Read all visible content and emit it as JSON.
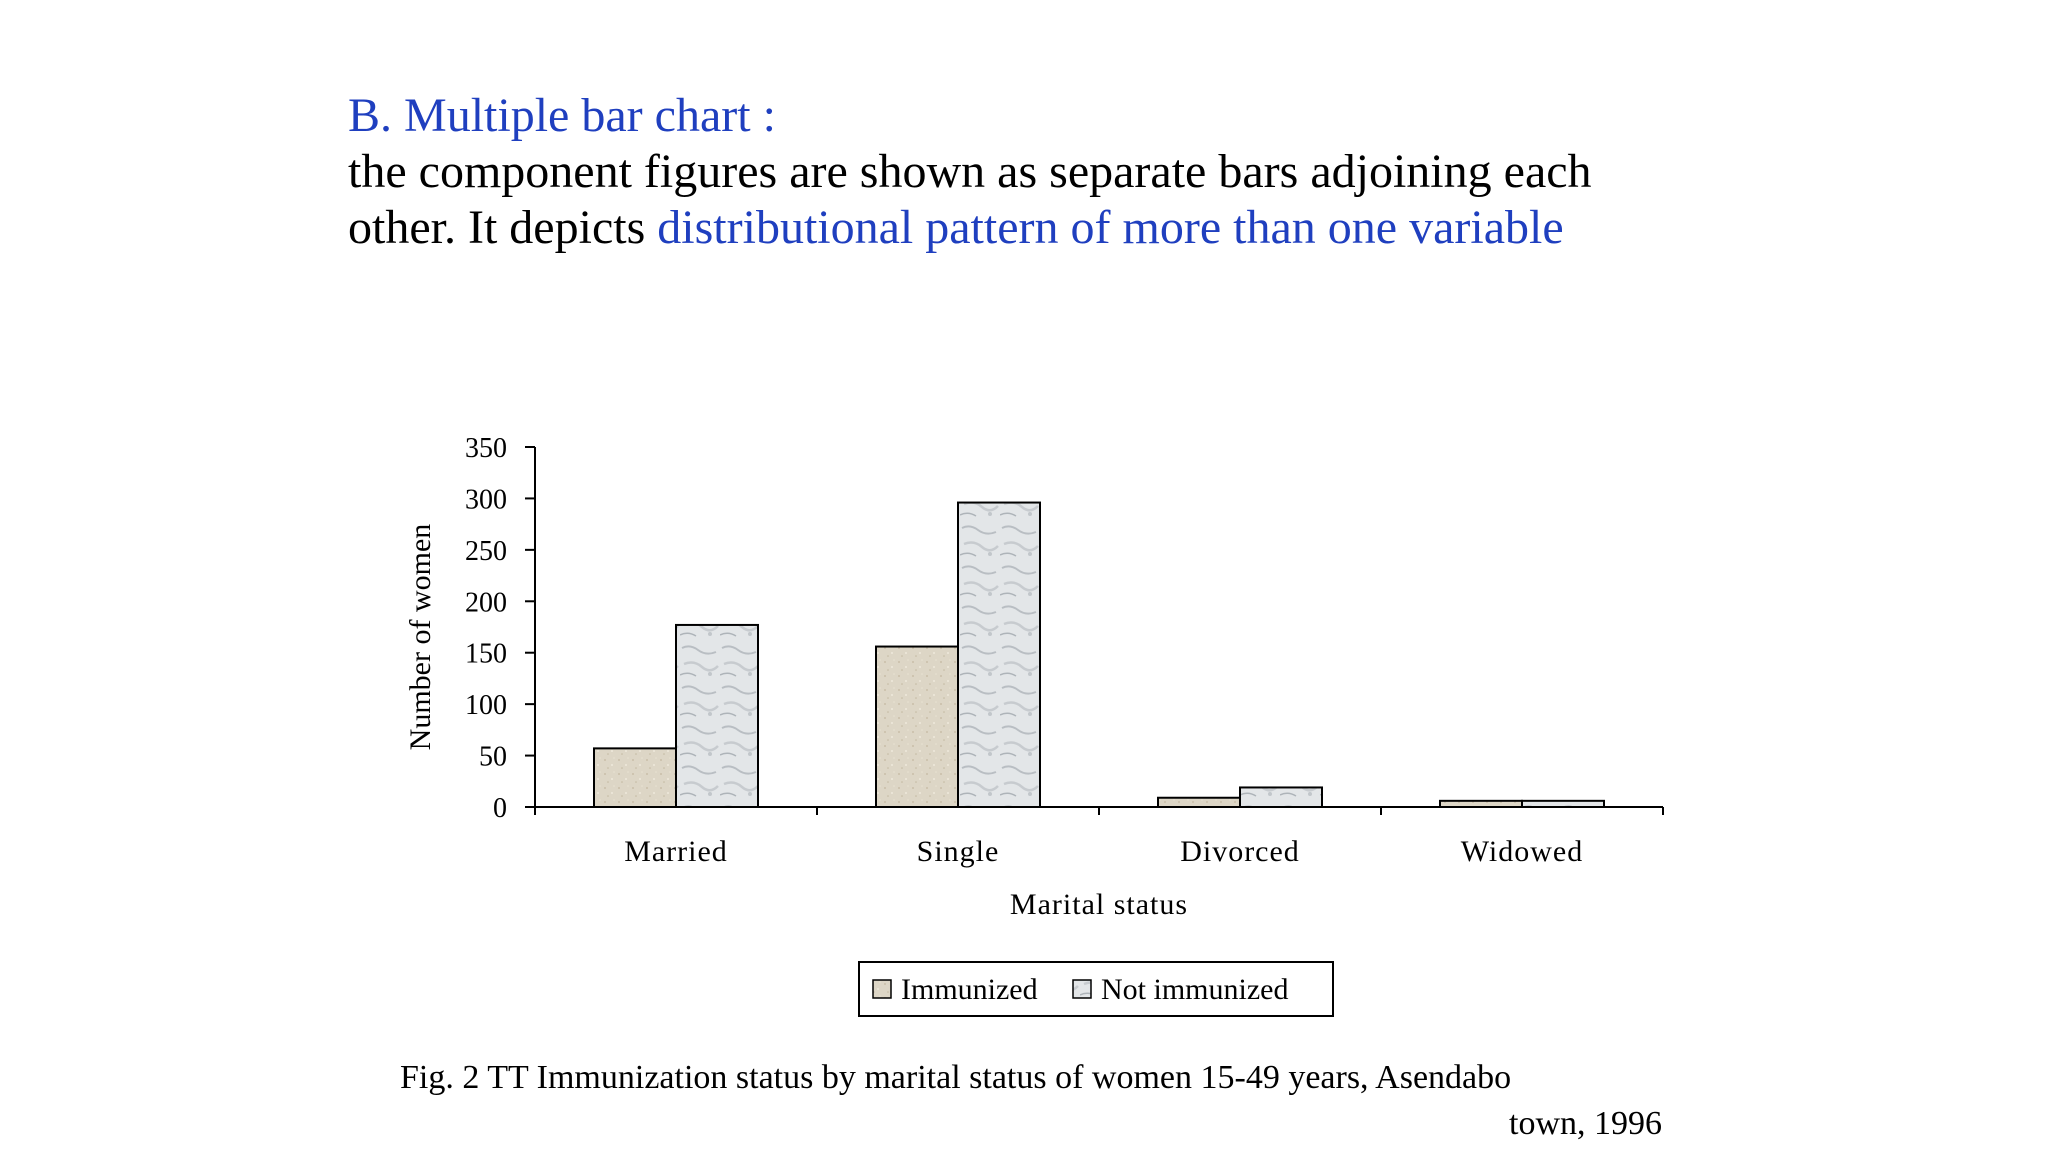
{
  "slide": {
    "heading": "B. Multiple bar chart :",
    "body_line1": "the component figures are shown as separate bars adjoining each",
    "body_line2_prefix": "other. It depicts ",
    "body_line2_highlight": "distributional pattern of more than one variable"
  },
  "colors": {
    "heading": "#1f3fbf",
    "immunized_fill": "#ddd6c6",
    "not_immunized_fill": "#dfe3e6",
    "axis": "#000000"
  },
  "chart_data": {
    "type": "bar",
    "title": "",
    "xlabel": "Marital status",
    "ylabel": "Number of women",
    "categories": [
      "Married",
      "Single",
      "Divorced",
      "Widowed"
    ],
    "series": [
      {
        "name": "Immunized",
        "values": [
          57,
          156,
          9,
          6
        ]
      },
      {
        "name": "Not immunized",
        "values": [
          177,
          296,
          19,
          6
        ]
      }
    ],
    "ylim": [
      0,
      350
    ],
    "yticks": [
      0,
      50,
      100,
      150,
      200,
      250,
      300,
      350
    ],
    "grid": false,
    "legend_placement": "bottom-center"
  },
  "caption": {
    "line1": "Fig. 2 TT Immunization status by marital status of women 15-49 years, Asendabo",
    "line2": "town, 1996"
  }
}
